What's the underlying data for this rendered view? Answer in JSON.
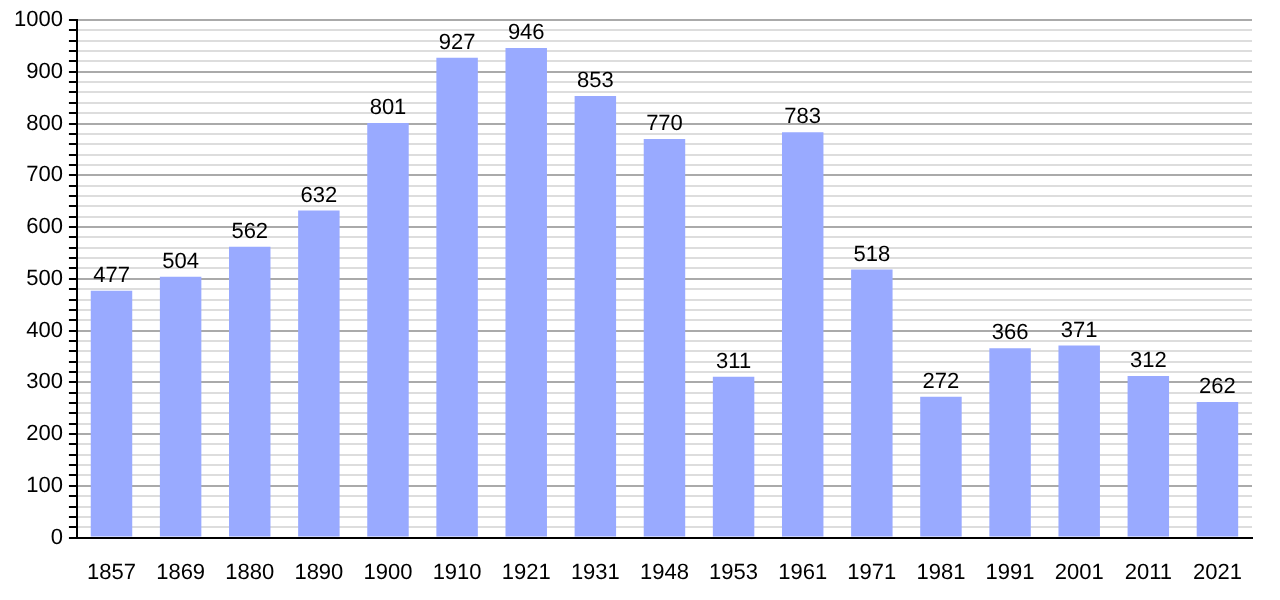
{
  "chart_data": {
    "type": "bar",
    "categories": [
      "1857",
      "1869",
      "1880",
      "1890",
      "1900",
      "1910",
      "1921",
      "1931",
      "1948",
      "1953",
      "1961",
      "1971",
      "1981",
      "1991",
      "2001",
      "2011",
      "2021"
    ],
    "values": [
      477,
      504,
      562,
      632,
      801,
      927,
      946,
      853,
      770,
      311,
      783,
      518,
      272,
      366,
      371,
      312,
      262
    ],
    "color": "#99aaff",
    "data_labels": true,
    "grid": "y",
    "ylim": [
      0,
      1000
    ],
    "yticks": [
      0,
      {
        "value": 20,
        "label": null
      },
      {
        "value": 40,
        "label": null
      },
      {
        "value": 60,
        "label": null
      },
      {
        "value": 80,
        "label": null
      },
      100,
      {
        "value": 120,
        "label": null
      },
      {
        "value": 140,
        "label": null
      },
      {
        "value": 160,
        "label": null
      },
      {
        "value": 180,
        "label": null
      },
      200,
      {
        "value": 220,
        "label": null
      },
      {
        "value": 240,
        "label": null
      },
      {
        "value": 260,
        "label": null
      },
      {
        "value": 280,
        "label": null
      },
      300,
      {
        "value": 320,
        "label": null
      },
      {
        "value": 340,
        "label": null
      },
      {
        "value": 360,
        "label": null
      },
      {
        "value": 380,
        "label": null
      },
      400,
      {
        "value": 420,
        "label": null
      },
      {
        "value": 440,
        "label": null
      },
      {
        "value": 460,
        "label": null
      },
      {
        "value": 480,
        "label": null
      },
      500,
      {
        "value": 520,
        "label": null
      },
      {
        "value": 540,
        "label": null
      },
      {
        "value": 560,
        "label": null
      },
      {
        "value": 580,
        "label": null
      },
      600,
      {
        "value": 620,
        "label": null
      },
      {
        "value": 640,
        "label": null
      },
      {
        "value": 660,
        "label": null
      },
      {
        "value": 680,
        "label": null
      },
      700,
      {
        "value": 720,
        "label": null
      },
      {
        "value": 740,
        "label": null
      },
      {
        "value": 760,
        "label": null
      },
      {
        "value": 780,
        "label": null
      },
      800,
      {
        "value": 820,
        "label": null
      },
      {
        "value": 840,
        "label": null
      },
      {
        "value": 860,
        "label": null
      },
      {
        "value": 880,
        "label": null
      },
      900,
      {
        "value": 920,
        "label": null
      },
      {
        "value": 940,
        "label": null
      },
      {
        "value": 960,
        "label": null
      },
      {
        "value": 980,
        "label": null
      },
      1000
    ]
  }
}
